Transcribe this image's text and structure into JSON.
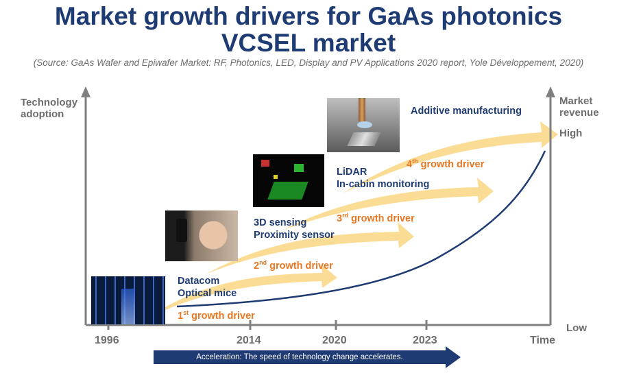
{
  "title": {
    "line1": "Market growth drivers for GaAs photonics",
    "line2": "VCSEL market"
  },
  "source": "(Source: GaAs Wafer and Epiwafer Market: RF, Photonics, LED, Display and PV Applications 2020 report, Yole Développement, 2020)",
  "axes": {
    "y_left_line1": "Technology",
    "y_left_line2": "adoption",
    "y_right_line1": "Market",
    "y_right_line2": "revenue",
    "high": "High",
    "low": "Low",
    "x_end": "Time"
  },
  "years": [
    "1996",
    "2014",
    "2020",
    "2023"
  ],
  "applications": [
    {
      "line1": "Datacom",
      "line2": "Optical mice"
    },
    {
      "line1": "3D sensing",
      "line2": "Proximity sensor"
    },
    {
      "line1": "LiDAR",
      "line2": "In-cabin monitoring"
    },
    {
      "line1": "Additive manufacturing",
      "line2": ""
    }
  ],
  "drivers": [
    {
      "num": "1",
      "sup": "st",
      "text": " growth driver"
    },
    {
      "num": "2",
      "sup": "nd",
      "text": " growth driver"
    },
    {
      "num": "3",
      "sup": "rd",
      "text": " growth driver"
    },
    {
      "num": "4",
      "sup": "th",
      "text": " growth driver"
    }
  ],
  "acceleration": "Acceleration: The speed of technology change accelerates.",
  "colors": {
    "navy": "#1f3b73",
    "orange": "#e87722",
    "arrow_fill": "#fbdc94",
    "axis_grey": "#7f7f7f"
  }
}
